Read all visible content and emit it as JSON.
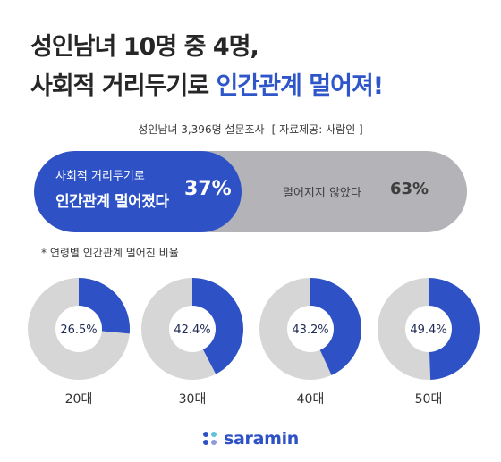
{
  "header": {
    "title_line1": "성인남녀 10명 중 4명,",
    "title_line2_prefix": "사회적 거리두기로 ",
    "title_line2_accent": "인간관계 멀어져!",
    "survey": "성인남녀 3,396명 설문조사",
    "source": "[ 자료제공: 사람인 ]"
  },
  "bar": {
    "left_line1": "사회적 거리두기로",
    "left_line2": "인간관계 멀어졌다",
    "left_pct": "37%",
    "right_label": "멀어지지 않았다",
    "right_pct": "63%"
  },
  "note": "*  연령별 인간관계 멀어진 비율",
  "logo": {
    "text": "saramin"
  },
  "colors": {
    "accent": "#2e52c6",
    "gray": "#d6d6d6",
    "bar_gray": "#b4b4b8"
  },
  "chart_data": [
    {
      "type": "bar",
      "categories": [
        "사회적 거리두기로 인간관계 멀어졌다",
        "멀어지지 않았다"
      ],
      "values": [
        37,
        63
      ],
      "unit": "%"
    },
    {
      "type": "pie",
      "title": "연령별 인간관계 멀어진 비율",
      "categories": [
        "20대",
        "30대",
        "40대",
        "50대"
      ],
      "values": [
        26.5,
        42.4,
        43.2,
        49.4
      ],
      "labels": [
        "26.5%",
        "42.4%",
        "43.2%",
        "49.4%"
      ]
    }
  ]
}
